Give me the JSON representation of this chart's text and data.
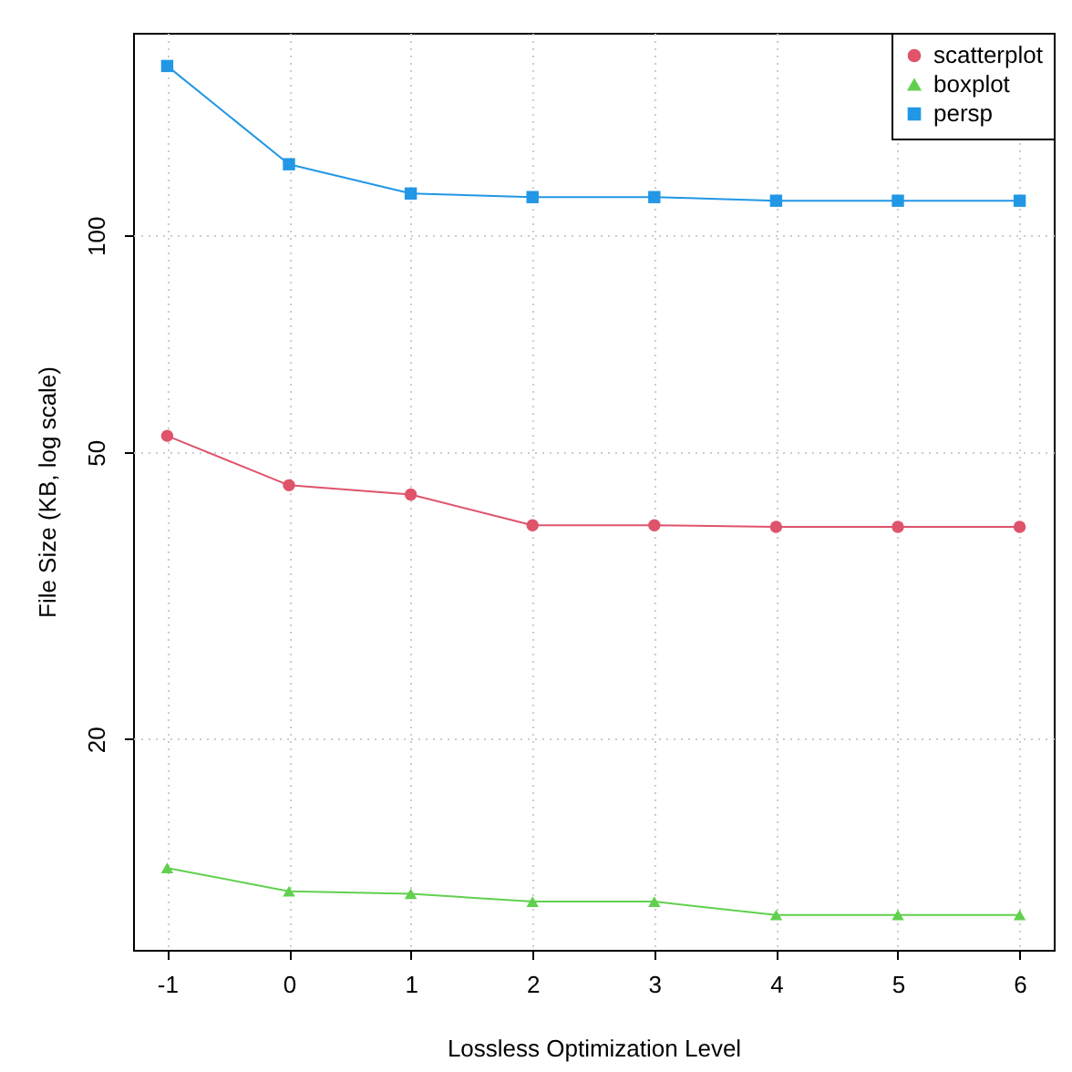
{
  "chart_data": {
    "type": "line",
    "xlabel": "Lossless Optimization Level",
    "ylabel": "File Size (KB, log scale)",
    "x": [
      -1,
      0,
      1,
      2,
      3,
      4,
      5,
      6
    ],
    "series": [
      {
        "name": "scatterplot",
        "color": "#df536b",
        "marker": "circle",
        "values": [
          52.7,
          45.0,
          43.7,
          39.6,
          39.6,
          39.4,
          39.4,
          39.4
        ]
      },
      {
        "name": "boxplot",
        "color": "#61d04f",
        "marker": "triangle",
        "values": [
          13.25,
          12.3,
          12.2,
          11.9,
          11.9,
          11.4,
          11.4,
          11.4
        ]
      },
      {
        "name": "persp",
        "color": "#2297e6",
        "marker": "square",
        "values": [
          171.8,
          125.5,
          114.3,
          113.0,
          113.0,
          111.7,
          111.7,
          111.7
        ]
      }
    ],
    "log": "y",
    "xlim": [
      -1.28,
      6.28
    ],
    "ylim": [
      10.2,
      191
    ],
    "xticks": [
      -1,
      0,
      1,
      2,
      3,
      4,
      5,
      6
    ],
    "yticks": [
      20,
      50,
      100
    ],
    "grid": true,
    "legend": "top right",
    "line_style": "solid"
  }
}
